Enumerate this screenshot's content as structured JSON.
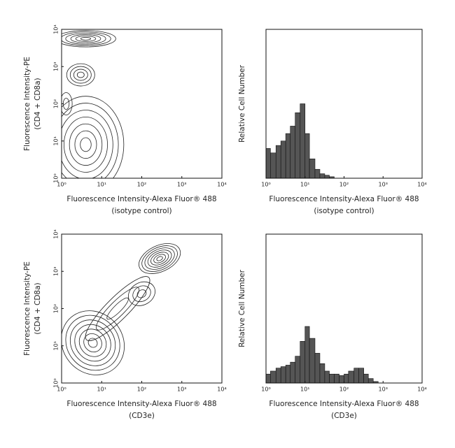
{
  "chart_data": [
    {
      "type": "contour",
      "color": "#222222",
      "x_label": [
        "Fluorescence Intensity-Alexa Fluor® 488",
        "(isotype control)"
      ],
      "y_label": [
        "Fluorescence Intensity-PE",
        "(CD4 + CD8a)"
      ],
      "log_x": true,
      "log_y": true,
      "xlim": [
        1,
        10000
      ],
      "ylim": [
        1,
        10000
      ],
      "xticks": [
        {
          "value": 1,
          "label": "10⁰"
        },
        {
          "value": 10,
          "label": "10¹"
        },
        {
          "value": 100,
          "label": "10²"
        },
        {
          "value": 1000,
          "label": "10³"
        },
        {
          "value": 10000,
          "label": "10⁴"
        }
      ],
      "yticks": [
        {
          "value": 1,
          "label": "10⁰"
        },
        {
          "value": 10,
          "label": "10¹"
        },
        {
          "value": 100,
          "label": "10²"
        },
        {
          "value": 1000,
          "label": "10³"
        },
        {
          "value": 10000,
          "label": "10⁴"
        }
      ],
      "populations": [
        {
          "x": 4,
          "y": 5600,
          "sx": 0.75,
          "sy": 0.22,
          "levels": 6,
          "angle": 0
        },
        {
          "x": 3,
          "y": 600,
          "sx": 0.35,
          "sy": 0.3,
          "levels": 4,
          "angle": 0
        },
        {
          "x": 1.3,
          "y": 100,
          "sx": 0.15,
          "sy": 0.3,
          "levels": 2,
          "angle": 0
        },
        {
          "x": 4,
          "y": 8,
          "sx": 0.95,
          "sy": 1.3,
          "levels": 7,
          "angle": 0
        }
      ]
    },
    {
      "type": "histogram",
      "color": "#555555",
      "x_label": [
        "Fluorescence Intensity-Alexa Fluor® 488",
        "(isotype control)"
      ],
      "y_label": [
        "Relative Cell Number"
      ],
      "log_x": true,
      "xlim": [
        1,
        10000
      ],
      "ylim": [
        0,
        100
      ],
      "xticks": [
        {
          "value": 1,
          "label": "10⁰"
        },
        {
          "value": 10,
          "label": "10¹"
        },
        {
          "value": 100,
          "label": "10²"
        },
        {
          "value": 1000,
          "label": "10³"
        },
        {
          "value": 10000,
          "label": "10⁴"
        }
      ],
      "bins": [
        1,
        1.3,
        1.8,
        2.4,
        3.2,
        4.2,
        5.6,
        7.5,
        10,
        13,
        18,
        24,
        32,
        42,
        56
      ],
      "values": [
        20,
        17,
        22,
        25,
        30,
        35,
        44,
        50,
        30,
        13,
        6,
        3,
        2,
        1
      ]
    },
    {
      "type": "contour",
      "color": "#222222",
      "x_label": [
        "Fluorescence Intensity-Alexa Fluor® 488",
        "(CD3e)"
      ],
      "y_label": [
        "Fluorescence Intensity-PE",
        "(CD4 + CD8a)"
      ],
      "log_x": true,
      "log_y": true,
      "xlim": [
        1,
        10000
      ],
      "ylim": [
        1,
        10000
      ],
      "xticks": [
        {
          "value": 1,
          "label": "10⁰"
        },
        {
          "value": 10,
          "label": "10¹"
        },
        {
          "value": 100,
          "label": "10²"
        },
        {
          "value": 1000,
          "label": "10³"
        },
        {
          "value": 10000,
          "label": "10⁴"
        }
      ],
      "yticks": [
        {
          "value": 1,
          "label": "10⁰"
        },
        {
          "value": 10,
          "label": "10¹"
        },
        {
          "value": 100,
          "label": "10²"
        },
        {
          "value": 1000,
          "label": "10³"
        },
        {
          "value": 10000,
          "label": "10⁴"
        }
      ],
      "populations": [
        {
          "x": 280,
          "y": 2200,
          "sx": 0.55,
          "sy": 0.35,
          "levels": 7,
          "angle": -25
        },
        {
          "x": 100,
          "y": 250,
          "sx": 0.35,
          "sy": 0.3,
          "levels": 3,
          "angle": -30
        },
        {
          "x": 25,
          "y": 100,
          "sx": 1.1,
          "sy": 0.3,
          "levels": 3,
          "angle": -45
        },
        {
          "x": 6,
          "y": 12,
          "sx": 0.75,
          "sy": 0.9,
          "levels": 7,
          "angle": -40
        }
      ]
    },
    {
      "type": "histogram",
      "color": "#555555",
      "x_label": [
        "Fluorescence Intensity-Alexa Fluor® 488",
        "(CD3e)"
      ],
      "y_label": [
        "Relative Cell Number"
      ],
      "log_x": true,
      "xlim": [
        1,
        10000
      ],
      "ylim": [
        0,
        100
      ],
      "xticks": [
        {
          "value": 1,
          "label": "10⁰"
        },
        {
          "value": 10,
          "label": "10¹"
        },
        {
          "value": 100,
          "label": "10²"
        },
        {
          "value": 1000,
          "label": "10³"
        },
        {
          "value": 10000,
          "label": "10⁴"
        }
      ],
      "bins": [
        1,
        1.3,
        1.8,
        2.4,
        3.2,
        4.2,
        5.6,
        7.5,
        10,
        13,
        18,
        24,
        32,
        42,
        56,
        75,
        100,
        130,
        180,
        240,
        320,
        420,
        560,
        750
      ],
      "values": [
        6,
        8,
        10,
        11,
        12,
        14,
        18,
        28,
        38,
        30,
        20,
        13,
        8,
        6,
        6,
        5,
        6,
        8,
        10,
        10,
        6,
        3,
        1
      ]
    }
  ]
}
